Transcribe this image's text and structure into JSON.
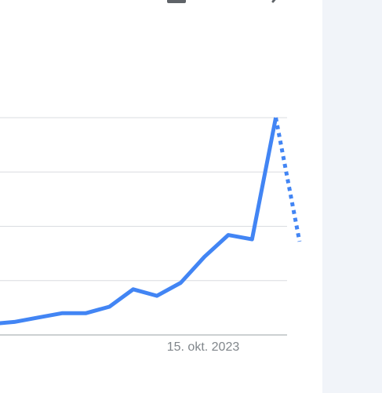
{
  "chart_data": {
    "type": "line",
    "x_tick_labels": [
      "15. okt. 2023"
    ],
    "ylim": [
      0,
      100
    ],
    "grid": true,
    "series": [
      {
        "color": "#4285f4",
        "style": "solid",
        "values": [
          5,
          6,
          8,
          10,
          10,
          13,
          21,
          18,
          24,
          36,
          46,
          44,
          100
        ]
      },
      {
        "color": "#4285f4",
        "style": "dotted",
        "values_from_index": 12,
        "values": [
          100,
          43
        ]
      }
    ]
  },
  "icons": {
    "top_left": "download-icon",
    "top_right": "share-icon"
  }
}
